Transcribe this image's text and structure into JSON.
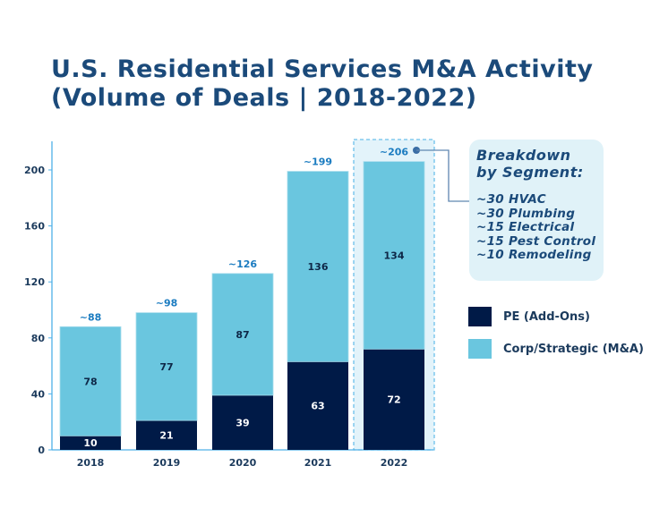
{
  "chart_data": {
    "type": "bar",
    "stacked": true,
    "title": [
      "U.S. Residential Services M&A Activity",
      "(Volume of Deals | 2018-2022)"
    ],
    "categories": [
      "2018",
      "2019",
      "2020",
      "2021",
      "2022"
    ],
    "series": [
      {
        "name": "PE (Add-Ons)",
        "values": [
          10,
          21,
          39,
          63,
          72
        ],
        "color": "#001a47"
      },
      {
        "name": "Corp/Strategic (M&A)",
        "values": [
          78,
          77,
          87,
          136,
          134
        ],
        "color": "#6ac6df"
      }
    ],
    "totals_labels": [
      "~88",
      "~98",
      "~126",
      "~199",
      "~206"
    ],
    "totals": [
      88,
      98,
      126,
      199,
      206
    ],
    "ylim": [
      0,
      220
    ],
    "yticks": [
      0,
      40,
      80,
      120,
      160,
      200
    ],
    "grid": false,
    "legend_position": "right",
    "highlight_category": "2022",
    "callout": {
      "heading": [
        "Breakdown",
        "by Segment:"
      ],
      "items": [
        "~30 HVAC",
        "~30 Plumbing",
        "~15 Electrical",
        "~15 Pest Control",
        "~10 Remodeling"
      ]
    },
    "colors": {
      "title": "#1b4a7a",
      "axis": "#4fb0e8",
      "total_label": "#1a7bc0",
      "highlight": "#e3f3fa"
    }
  }
}
